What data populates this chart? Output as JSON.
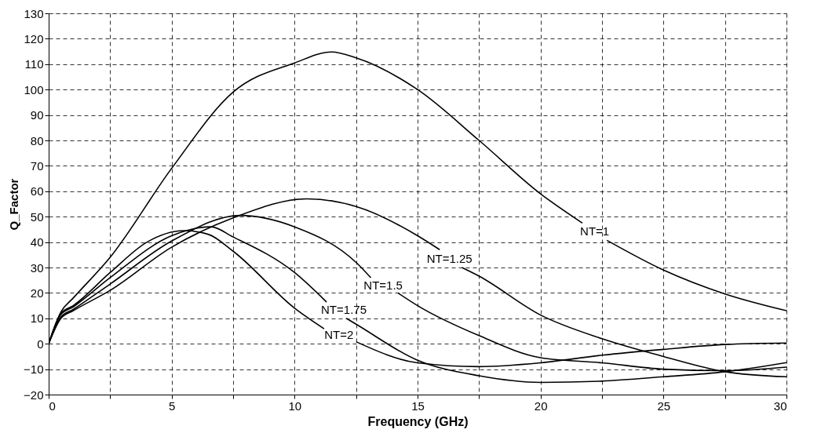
{
  "chart_data": {
    "type": "line",
    "xlabel": "Frequency (GHz)",
    "ylabel": "Q_Factor",
    "xlim": [
      0,
      30
    ],
    "ylim": [
      -20,
      130
    ],
    "xticks": [
      0,
      {
        "value": 2.5,
        "label": null
      },
      5,
      {
        "value": 7.5,
        "label": null
      },
      10,
      {
        "value": 12.5,
        "label": null
      },
      15,
      {
        "value": 17.5,
        "label": null
      },
      20,
      {
        "value": 22.5,
        "label": null
      },
      25,
      {
        "value": 27.5,
        "label": null
      },
      30
    ],
    "yticks": [
      -20,
      -10,
      0,
      10,
      20,
      30,
      40,
      50,
      60,
      70,
      80,
      90,
      100,
      110,
      120,
      130
    ],
    "grid": true,
    "legend": false,
    "marker": "none",
    "line_style": "solid",
    "series": [
      {
        "name": "NT=1",
        "color": "#000000",
        "x": [
          0,
          0.5,
          1,
          2.5,
          5,
          7.5,
          10,
          11.5,
          12.5,
          15,
          17.5,
          20,
          21.7,
          22.2,
          22.7,
          25,
          27.5,
          30
        ],
        "values": [
          0,
          12.5,
          18,
          34,
          69,
          99,
          110.5,
          114.8,
          112.5,
          100,
          80,
          59,
          47.5,
          null,
          40.7,
          29,
          19.6,
          13
        ]
      },
      {
        "name": "NT=1.25",
        "color": "#000000",
        "x": [
          0,
          0.5,
          1,
          2.5,
          5,
          7.5,
          10.5,
          12.5,
          15,
          15.9,
          16.3,
          16.8,
          17.5,
          20,
          22.5,
          25,
          27.5,
          30
        ],
        "values": [
          0,
          10,
          13,
          21,
          38,
          49.5,
          57,
          54,
          42.5,
          37,
          null,
          30,
          26.6,
          11.3,
          2,
          -5,
          -11,
          -13
        ]
      },
      {
        "name": "NT=1.5",
        "color": "#000000",
        "x": [
          0,
          0.5,
          1,
          2.5,
          5,
          7.8,
          10,
          12.5,
          13.1,
          13.6,
          14.2,
          15,
          17.5,
          20,
          22.5,
          25,
          27.5,
          30
        ],
        "values": [
          0,
          10.5,
          13.5,
          23.5,
          40.4,
          50.5,
          46,
          32,
          26,
          null,
          20,
          15,
          3.2,
          -5.5,
          -7.5,
          -10,
          -10.6,
          -9.2
        ]
      },
      {
        "name": "NT=1.75",
        "color": "#000000",
        "x": [
          0,
          0.5,
          1,
          2.5,
          5,
          6.6,
          7.5,
          10,
          11.3,
          12.0,
          12.1,
          12.5,
          15,
          17.5,
          20,
          22.5,
          25,
          27.5,
          30
        ],
        "values": [
          0,
          11.5,
          14.5,
          26,
          42.5,
          46,
          42,
          28,
          16.4,
          null,
          10,
          7.7,
          -6.5,
          -12.6,
          -15.2,
          -14.7,
          -13,
          -11,
          -7.4
        ]
      },
      {
        "name": "NT=2",
        "color": "#000000",
        "x": [
          0,
          0.5,
          1,
          2.5,
          4,
          5.5,
          6.5,
          7.5,
          10,
          11.2,
          11.8,
          12.5,
          15,
          17.5,
          20,
          22.5,
          25,
          27.5,
          30
        ],
        "values": [
          0,
          12,
          15,
          28,
          40,
          44.5,
          43,
          36.4,
          14,
          5.9,
          null,
          0.8,
          -7.5,
          -9,
          -7.5,
          -4.5,
          -2.2,
          -0.3,
          0.3
        ]
      }
    ]
  }
}
